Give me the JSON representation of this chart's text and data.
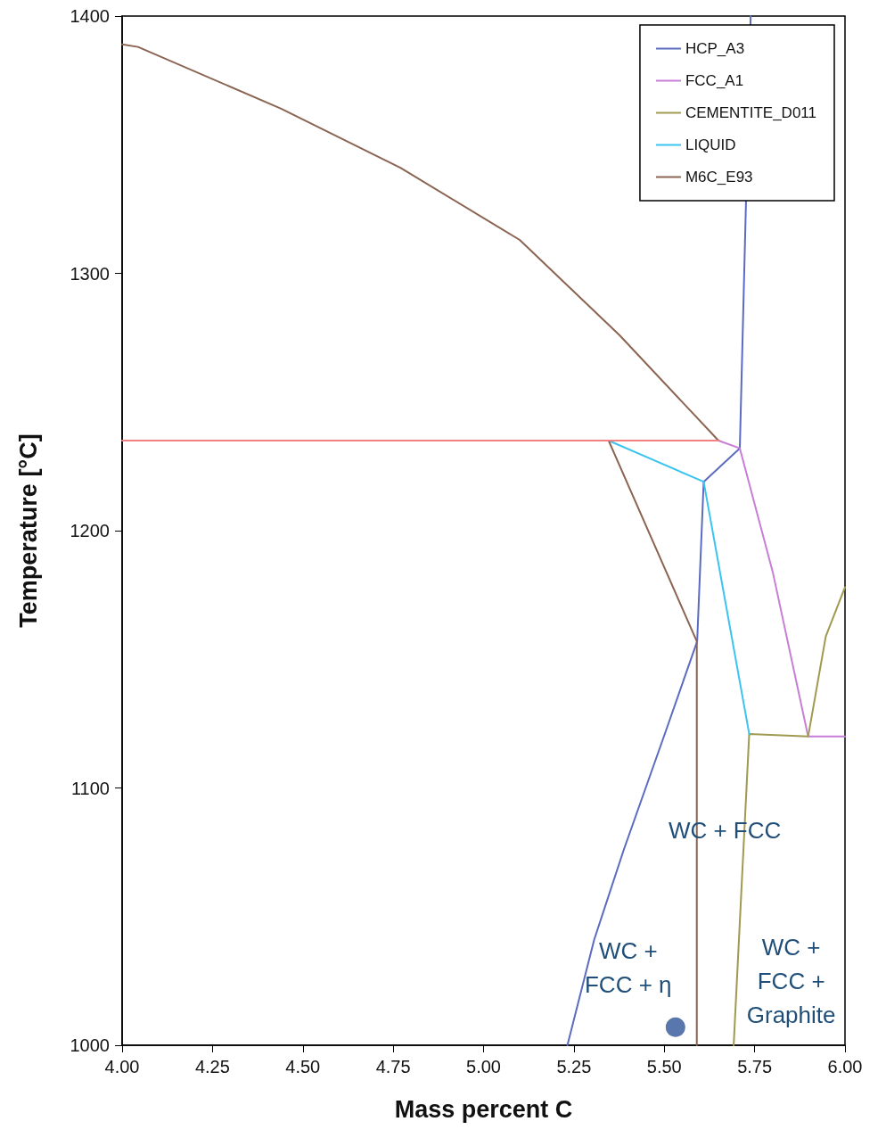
{
  "chart_data": {
    "type": "line",
    "xlabel": "Mass percent C",
    "ylabel": "Temperature [°C]",
    "xlim": [
      4.0,
      6.0
    ],
    "xticks": [
      {
        "value": 4.0,
        "label": "4.00"
      },
      {
        "value": 4.25,
        "label": "4.25"
      },
      {
        "value": 4.5,
        "label": "4.50"
      },
      {
        "value": 4.75,
        "label": "4.75"
      },
      {
        "value": 5.0,
        "label": "5.00"
      },
      {
        "value": 5.25,
        "label": "5.25"
      },
      {
        "value": 5.5,
        "label": "5.50"
      },
      {
        "value": 5.75,
        "label": "5.75"
      },
      {
        "value": 6.0,
        "label": "6.00"
      }
    ],
    "ylim": [
      1000,
      1400
    ],
    "yticks": [
      1000,
      1100,
      1200,
      1300,
      1400
    ],
    "grid": false,
    "legend": "top right",
    "marker": "none",
    "line_style": "solid",
    "series": [
      {
        "name": "HCP_A3",
        "color": "#5b6bbf",
        "x": [
          5.739,
          5.709,
          5.609,
          5.591,
          5.504,
          5.388,
          5.306,
          5.232
        ],
        "values": [
          1400,
          1232,
          1219,
          1157,
          1122,
          1076,
          1041,
          1000
        ]
      },
      {
        "name": "FCC_A1",
        "color": "#c77ed6",
        "x": [
          5.65,
          5.709,
          5.8,
          5.898,
          6.0
        ],
        "values": [
          1235,
          1232,
          1184,
          1120,
          1120
        ]
      },
      {
        "name": "CEMENTITE_D011",
        "color": "#a09a50",
        "x": [
          6.0,
          5.947,
          5.898,
          5.735,
          5.692
        ],
        "values": [
          1178,
          1159,
          1120,
          1121,
          1000
        ]
      },
      {
        "name": "LIQUID",
        "color": "#3cc4f0",
        "x": [
          5.346,
          5.609,
          5.735
        ],
        "values": [
          1235,
          1219,
          1121
        ]
      },
      {
        "name": "M6C_E93",
        "color": "#8b6452",
        "x": [
          4.0,
          4.044,
          4.44,
          4.77,
          5.1,
          5.376,
          5.65,
          null,
          5.346,
          5.59,
          5.59
        ],
        "values": [
          1389,
          1388,
          1364,
          1341,
          1313,
          1276,
          1235,
          null,
          1235,
          1157,
          1000
        ]
      },
      {
        "color": "#f28080",
        "x": [
          4.0,
          5.65
        ],
        "values": [
          1235,
          1235
        ]
      },
      {
        "type": "scatter",
        "marker": "circle",
        "color": "#2f5597",
        "x": [
          5.531
        ],
        "values": [
          1007
        ]
      }
    ],
    "annotations": [
      "WC + FCC",
      "WC +\nFCC + η",
      "WC +\nFCC +\nGraphite"
    ]
  }
}
